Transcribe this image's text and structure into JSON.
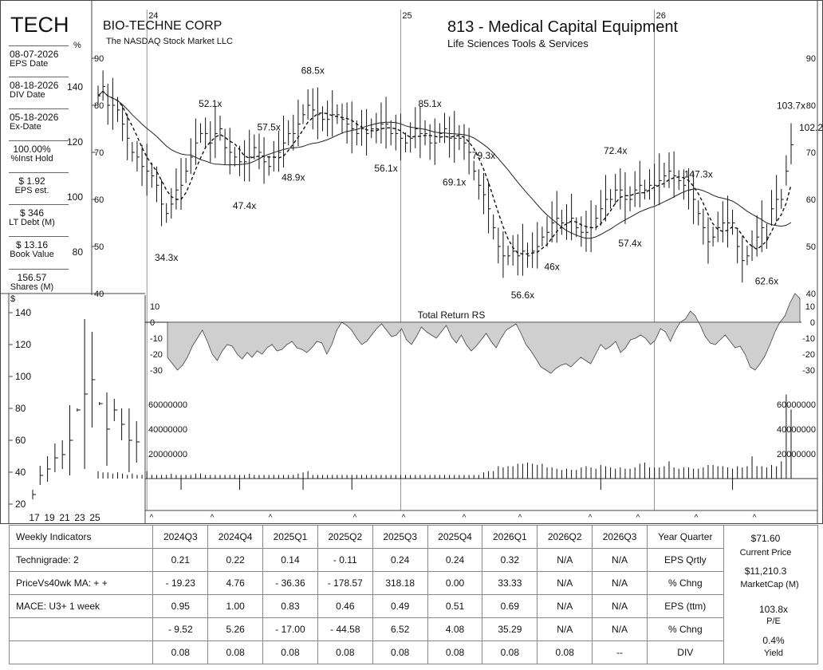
{
  "header": {
    "ticker": "TECH",
    "company": "BIO-TECHNE CORP",
    "exchange": "The NASDAQ Stock Market LLC",
    "industry": "813 - Medical Capital Equipment",
    "sector": "Life Sciences Tools & Services",
    "pct_symbol": "%"
  },
  "left_metrics": [
    {
      "value": "08-07-2026",
      "label": "EPS Date"
    },
    {
      "value": "08-18-2026",
      "label": "DIV Date"
    },
    {
      "value": "05-18-2026",
      "label": "Ex-Date"
    },
    {
      "value": "100.00%",
      "label": "%Inst Hold"
    },
    {
      "value": "$ 1.92",
      "label": "EPS est."
    },
    {
      "value": "$ 346",
      "label": "LT Debt (M)"
    },
    {
      "value": "$ 13.16",
      "label": "Book Value"
    },
    {
      "value": "156.57",
      "label": "Shares (M)"
    }
  ],
  "pct_axis_ticks": [
    "140",
    "120",
    "100",
    "80"
  ],
  "chart_data": [
    {
      "type": "line",
      "name": "price",
      "x_year_labels": [
        {
          "x": "24",
          "week": 10
        },
        {
          "x": "25",
          "week": 62
        },
        {
          "x": "26",
          "week": 114
        }
      ],
      "y_ticks": [
        40,
        50,
        60,
        70,
        80,
        90
      ],
      "ylim": [
        40,
        90
      ],
      "weeks": 143,
      "close": [
        82,
        84,
        80,
        80,
        79,
        76,
        73,
        70,
        69,
        67,
        66,
        65,
        63,
        59,
        57,
        59,
        62,
        63,
        66,
        69,
        72,
        74,
        74,
        72,
        74,
        75,
        71,
        70,
        69,
        68,
        68,
        69,
        71,
        70,
        68,
        67,
        69,
        70,
        72,
        74,
        74,
        76,
        78,
        80,
        79,
        78,
        77,
        77,
        78,
        78,
        77,
        76,
        75,
        74,
        75,
        74,
        75,
        75,
        76,
        76,
        74,
        74,
        73,
        72,
        73,
        75,
        74,
        74,
        72,
        72,
        74,
        75,
        73,
        73,
        73,
        72,
        70,
        66,
        63,
        61,
        58,
        54,
        50,
        48,
        48,
        49,
        48,
        49,
        48,
        49,
        50,
        52,
        53,
        55,
        56,
        55,
        55,
        56,
        54,
        53,
        53,
        54,
        56,
        58,
        60,
        60,
        62,
        62,
        60,
        60,
        62,
        63,
        62,
        63,
        63,
        64,
        65,
        66,
        65,
        64,
        63,
        62,
        60,
        57,
        54,
        51,
        52,
        54,
        55,
        55,
        55,
        50,
        47,
        48,
        50,
        52,
        54,
        52,
        58,
        60,
        60,
        66,
        71.6
      ],
      "dashed_ma": "10-week moving average",
      "solid_ma": "40-week moving average",
      "pe_labels": [
        {
          "text": "34.3x",
          "week": 14,
          "pos": "below"
        },
        {
          "text": "52.1x",
          "week": 23,
          "pos": "above"
        },
        {
          "text": "47.4x",
          "week": 30,
          "pos": "below"
        },
        {
          "text": "57.5x",
          "week": 35,
          "pos": "above"
        },
        {
          "text": "48.9x",
          "week": 40,
          "pos": "below"
        },
        {
          "text": "68.5x",
          "week": 44,
          "pos": "above"
        },
        {
          "text": "56.1x",
          "week": 59,
          "pos": "below"
        },
        {
          "text": "85.1x",
          "week": 68,
          "pos": "above"
        },
        {
          "text": "69.1x",
          "week": 73,
          "pos": "below"
        },
        {
          "text": "79.3x",
          "week": 79,
          "pos": "above"
        },
        {
          "text": "56.6x",
          "week": 87,
          "pos": "below"
        },
        {
          "text": "46x",
          "week": 93,
          "pos": "below"
        },
        {
          "text": "72.4x",
          "week": 106,
          "pos": "above"
        },
        {
          "text": "57.4x",
          "week": 109,
          "pos": "below"
        },
        {
          "text": "147.3x",
          "week": 123,
          "pos": "above"
        },
        {
          "text": "62.6x",
          "week": 137,
          "pos": "below"
        },
        {
          "text": "103.7x",
          "week": 142,
          "pos": "above"
        },
        {
          "text": "102.2x",
          "week": 142,
          "pos": "right"
        }
      ]
    },
    {
      "type": "area",
      "name": "rs",
      "title": "Total Return RS",
      "y_ticks": [
        10,
        0,
        -10,
        -20,
        -30
      ],
      "ylim": [
        -35,
        15
      ],
      "values": [
        -22,
        -26,
        -30,
        -27,
        -22,
        -15,
        -10,
        -5,
        -12,
        -20,
        -24,
        -18,
        -14,
        -15,
        -20,
        -23,
        -19,
        -22,
        -18,
        -20,
        -16,
        -14,
        -18,
        -17,
        -14,
        -12,
        -16,
        -17,
        -19,
        -16,
        -12,
        -13,
        -20,
        -14,
        -5,
        0,
        -2,
        -5,
        -10,
        -14,
        -12,
        -8,
        -4,
        -1,
        -5,
        -9,
        -8,
        -4,
        -11,
        -14,
        -9,
        -3,
        -6,
        -8,
        -10,
        -6,
        -2,
        -9,
        -13,
        -8,
        -14,
        -18,
        -15,
        -11,
        -7,
        -12,
        -16,
        -10,
        -5,
        -3,
        -1,
        -7,
        -14,
        -18,
        -23,
        -28,
        -30,
        -32,
        -29,
        -27,
        -26,
        -28,
        -25,
        -22,
        -24,
        -26,
        -20,
        -14,
        -17,
        -15,
        -12,
        -19,
        -16,
        -11,
        -10,
        -8,
        -10,
        -14,
        -11,
        -4,
        -6,
        -12,
        -5,
        0,
        2,
        7,
        4,
        -2,
        -9,
        -13,
        -14,
        -11,
        -8,
        -12,
        -16,
        -15,
        -20,
        -28,
        -30,
        -26,
        -21,
        -14,
        -6,
        0,
        4,
        12,
        18,
        15
      ],
      "right_labels": [
        "10",
        "0",
        "-10",
        "-20",
        "-30"
      ]
    },
    {
      "type": "bar",
      "name": "volume",
      "y_ticks": [
        20000000,
        40000000,
        60000000
      ],
      "y_tick_labels": [
        "20000000",
        "40000000",
        "60000000"
      ],
      "ylim": [
        0,
        70000000
      ],
      "note": "weekly volume; values approximate",
      "values_millions": [
        6,
        5,
        5,
        4,
        5,
        4,
        3,
        4,
        3,
        3,
        6,
        3,
        3,
        3,
        3,
        4,
        3,
        3,
        3,
        3,
        4,
        4,
        3,
        3,
        3,
        3,
        3,
        3,
        3,
        3,
        3,
        4,
        3,
        3,
        3,
        3,
        3,
        3,
        3,
        3,
        3,
        4,
        5,
        6,
        3,
        3,
        3,
        3,
        3,
        3,
        3,
        3,
        3,
        3,
        3,
        3,
        3,
        3,
        3,
        3,
        3,
        3,
        3,
        3,
        3,
        3,
        3,
        3,
        3,
        3,
        3,
        3,
        3,
        3,
        3,
        3,
        3,
        3,
        3,
        5,
        6,
        6,
        10,
        9,
        10,
        10,
        12,
        12,
        13,
        12,
        11,
        12,
        9,
        9,
        8,
        7,
        8,
        7,
        7,
        9,
        10,
        9,
        8,
        11,
        10,
        9,
        8,
        9,
        8,
        8,
        9,
        12,
        13,
        9,
        9,
        9,
        10,
        14,
        9,
        8,
        9,
        9,
        8,
        8,
        9,
        11,
        11,
        10,
        10,
        9,
        8,
        10,
        9,
        10,
        18,
        10,
        10,
        9,
        11,
        10,
        14,
        68,
        56
      ]
    },
    {
      "type": "bar",
      "name": "annual",
      "y_ticks": [
        20,
        40,
        60,
        80,
        100,
        120,
        140
      ],
      "ylim": [
        18,
        148
      ],
      "x_labels": [
        "17",
        "19",
        "21",
        "23",
        "25"
      ],
      "ranges": [
        [
          23,
          29
        ],
        [
          32,
          44
        ],
        [
          34,
          50
        ],
        [
          40,
          58
        ],
        [
          42,
          60
        ],
        [
          38,
          82
        ],
        [
          78,
          80
        ],
        [
          42,
          136
        ],
        [
          68,
          128
        ],
        [
          82,
          84
        ],
        [
          44,
          90
        ],
        [
          72,
          86
        ],
        [
          60,
          80
        ],
        [
          40,
          80
        ],
        [
          46,
          72
        ]
      ]
    }
  ],
  "left_pane_dollar": "$",
  "markers": "^",
  "table": {
    "headers": [
      "Weekly Indicators",
      "2024Q3",
      "2024Q4",
      "2025Q1",
      "2025Q2",
      "2025Q3",
      "2025Q4",
      "2026Q1",
      "2026Q2",
      "2026Q3",
      "Year Quarter"
    ],
    "rows": [
      [
        "Technigrade: 2",
        "0.21",
        "0.22",
        "0.14",
        "- 0.11",
        "0.24",
        "0.24",
        "0.32",
        "N/A",
        "N/A",
        "EPS Qrtly"
      ],
      [
        "PriceVs40wk MA:  + +",
        "- 19.23",
        "4.76",
        "- 36.36",
        "- 178.57",
        "318.18",
        "0.00",
        "33.33",
        "N/A",
        "N/A",
        "% Chng"
      ],
      [
        "MACE:  U3+  1 week",
        "0.95",
        "1.00",
        "0.83",
        "0.46",
        "0.49",
        "0.51",
        "0.69",
        "N/A",
        "N/A",
        "EPS (ttm)"
      ],
      [
        "",
        "- 9.52",
        "5.26",
        "- 17.00",
        "- 44.58",
        "6.52",
        "4.08",
        "35.29",
        "N/A",
        "N/A",
        "% Chng"
      ],
      [
        "",
        "0.08",
        "0.08",
        "0.08",
        "0.08",
        "0.08",
        "0.08",
        "0.08",
        "0.08",
        "--",
        "DIV"
      ]
    ]
  },
  "side": {
    "price": "$71.60",
    "price_label": "Current Price",
    "mcap": "$11,210.3",
    "mcap_label": "MarketCap (M)",
    "pe": "103.8x",
    "pe_label": "P/E",
    "yield": "0.4%",
    "yield_label": "Yield"
  }
}
